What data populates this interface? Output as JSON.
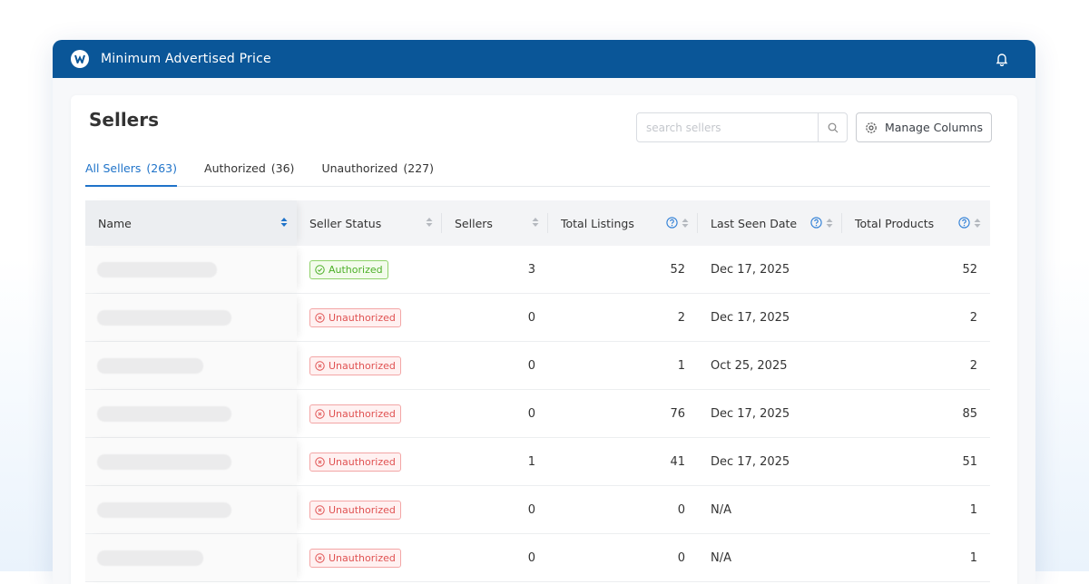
{
  "header": {
    "title": "Minimum Advertised Price"
  },
  "page": {
    "title": "Sellers",
    "search_placeholder": "search sellers",
    "manage_button": "Manage Columns"
  },
  "tabs": [
    {
      "label": "All Sellers",
      "count": "(263)"
    },
    {
      "label": "Authorized",
      "count": "(36)"
    },
    {
      "label": "Unauthorized",
      "count": "(227)"
    }
  ],
  "table": {
    "columns": [
      "Name",
      "Seller Status",
      "Sellers",
      "Total Listings",
      "Last Seen Date",
      "Total Products"
    ],
    "rows": [
      {
        "status": "Authorized",
        "sellers": 3,
        "listings": 52,
        "last_seen": "Dec 17, 2025",
        "products": 52
      },
      {
        "status": "Unauthorized",
        "sellers": 0,
        "listings": 2,
        "last_seen": "Dec 17, 2025",
        "products": 2
      },
      {
        "status": "Unauthorized",
        "sellers": 0,
        "listings": 1,
        "last_seen": "Oct 25, 2025",
        "products": 2
      },
      {
        "status": "Unauthorized",
        "sellers": 0,
        "listings": 76,
        "last_seen": "Dec 17, 2025",
        "products": 85
      },
      {
        "status": "Unauthorized",
        "sellers": 1,
        "listings": 41,
        "last_seen": "Dec 17, 2025",
        "products": 51
      },
      {
        "status": "Unauthorized",
        "sellers": 0,
        "listings": 0,
        "last_seen": "N/A",
        "products": 1
      },
      {
        "status": "Unauthorized",
        "sellers": 0,
        "listings": 0,
        "last_seen": "N/A",
        "products": 1
      }
    ]
  }
}
